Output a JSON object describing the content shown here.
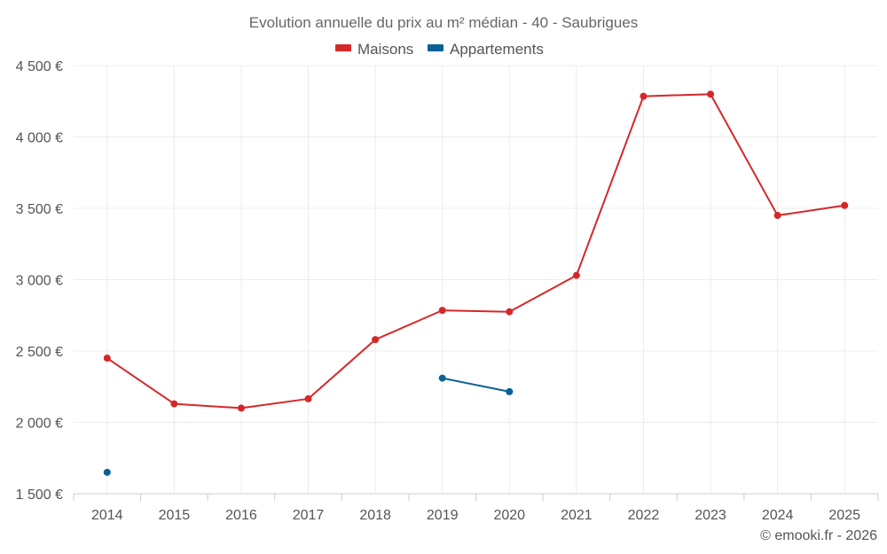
{
  "chart_data": {
    "type": "line",
    "title": "Evolution annuelle du prix au m² médian - 40 - Saubrigues",
    "categories": [
      "2014",
      "2015",
      "2016",
      "2017",
      "2018",
      "2019",
      "2020",
      "2021",
      "2022",
      "2023",
      "2024",
      "2025"
    ],
    "series": [
      {
        "name": "Maisons",
        "color": "#d62728",
        "values": [
          2450,
          2130,
          2100,
          2165,
          2580,
          2785,
          2775,
          3030,
          4285,
          4300,
          3450,
          3520
        ]
      },
      {
        "name": "Appartements",
        "color": "#0a6196",
        "values": [
          1650,
          null,
          null,
          null,
          null,
          2310,
          2215,
          null,
          null,
          null,
          null,
          null
        ]
      }
    ],
    "ylim": [
      1500,
      4500
    ],
    "yticks": [
      1500,
      2000,
      2500,
      3000,
      3500,
      4000,
      4500
    ],
    "ytick_labels": [
      "1 500 €",
      "2 000 €",
      "2 500 €",
      "3 000 €",
      "3 500 €",
      "4 000 €",
      "4 500 €"
    ],
    "legend_position": "top-center",
    "grid": true,
    "credit": "© emooki.fr - 2026"
  }
}
